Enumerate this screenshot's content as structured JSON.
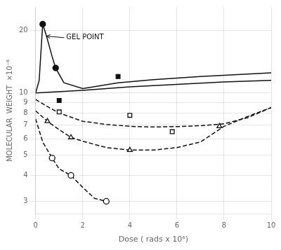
{
  "chart_data": {
    "type": "line",
    "xlabel": "Dose ( rads x 10⁶)",
    "ylabel": "MOLECULAR  WEIGHT  ×10⁻⁶",
    "log": "y",
    "xlim": [
      0,
      10
    ],
    "ylim": [
      2.6,
      26
    ],
    "xticks": [
      0,
      2,
      4,
      6,
      8,
      10
    ],
    "yticks": [
      3,
      4,
      5,
      6,
      7,
      8,
      9,
      10,
      20
    ],
    "grid": true,
    "color": "#111111",
    "series": [
      {
        "x": [
          0.0,
          0.15,
          0.3,
          0.45,
          0.7,
          0.85,
          1.2,
          2.0,
          3.5,
          5.0,
          7.0,
          10.0
        ],
        "values": [
          10.0,
          11.5,
          21.5,
          19.0,
          15.0,
          13.2,
          11.2,
          10.5,
          11.2,
          11.6,
          12.0,
          12.5
        ],
        "line_style": "solid",
        "marker": "none"
      },
      {
        "x": [
          0.3,
          0.85
        ],
        "values": [
          21.5,
          13.2
        ],
        "line_style": "none",
        "marker": "circle"
      },
      {
        "x": [
          0.0,
          2.0,
          4.0,
          6.0,
          8.0,
          10.0
        ],
        "values": [
          10.0,
          10.3,
          10.7,
          11.0,
          11.3,
          11.5
        ],
        "line_style": "solid",
        "marker": "none"
      },
      {
        "x": [
          1.0,
          3.5
        ],
        "values": [
          9.2,
          12.0
        ],
        "line_style": "none",
        "marker": "square"
      },
      {
        "x": [
          0.0,
          0.5,
          1.0,
          2.0,
          3.0,
          4.0,
          5.0,
          6.0,
          7.0,
          8.0,
          9.0,
          10.0
        ],
        "values": [
          9.3,
          8.6,
          8.0,
          7.3,
          7.05,
          6.9,
          6.85,
          6.88,
          6.95,
          7.1,
          7.6,
          8.5
        ],
        "line_style": "dashed",
        "marker": "none"
      },
      {
        "x": [
          1.0,
          4.0,
          5.8
        ],
        "values": [
          8.1,
          7.8,
          6.5
        ],
        "line_style": "none",
        "marker": "open_square"
      },
      {
        "x": [
          0.0,
          0.5,
          1.0,
          1.5,
          2.0,
          3.0,
          4.0,
          5.0,
          6.0,
          7.0,
          8.0,
          9.0,
          10.0
        ],
        "values": [
          8.2,
          7.3,
          6.65,
          6.1,
          5.85,
          5.45,
          5.3,
          5.3,
          5.45,
          5.8,
          6.9,
          7.7,
          8.5
        ],
        "line_style": "dashed",
        "marker": "none"
      },
      {
        "x": [
          0.5,
          1.5,
          4.0,
          7.8
        ],
        "values": [
          7.3,
          6.1,
          5.3,
          6.9
        ],
        "line_style": "none",
        "marker": "open_triangle"
      },
      {
        "x": [
          0.0,
          0.3,
          0.7,
          1.0,
          1.5,
          2.0,
          2.5,
          3.0
        ],
        "values": [
          7.5,
          5.8,
          4.85,
          4.3,
          4.0,
          3.5,
          3.1,
          3.0
        ],
        "line_style": "dashed",
        "marker": "none"
      },
      {
        "x": [
          0.7,
          1.5,
          3.0
        ],
        "values": [
          4.85,
          4.0,
          3.0
        ],
        "line_style": "none",
        "marker": "open_circle"
      }
    ],
    "annotations": [
      {
        "text": "GEL POINT",
        "x": 0.46,
        "y": 18.8,
        "text_x": 1.3,
        "text_y": 18.5
      }
    ]
  }
}
